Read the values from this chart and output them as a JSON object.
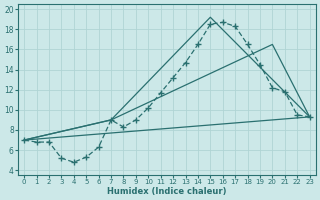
{
  "xlabel": "Humidex (Indice chaleur)",
  "xlim": [
    -0.5,
    23.5
  ],
  "ylim": [
    3.5,
    20.5
  ],
  "yticks": [
    4,
    6,
    8,
    10,
    12,
    14,
    16,
    18,
    20
  ],
  "xticks": [
    0,
    1,
    2,
    3,
    4,
    5,
    6,
    7,
    8,
    9,
    10,
    11,
    12,
    13,
    14,
    15,
    16,
    17,
    18,
    19,
    20,
    21,
    22,
    23
  ],
  "bg_color": "#cce8e8",
  "line_color": "#2a7070",
  "grid_color": "#b0d4d4",
  "line1_x": [
    0,
    1,
    2,
    3,
    4,
    5,
    6,
    7,
    8,
    9,
    10,
    11,
    12,
    13,
    14,
    15,
    16,
    17,
    18,
    19,
    20,
    21,
    22,
    23
  ],
  "line1_y": [
    7.0,
    6.8,
    6.8,
    5.2,
    4.8,
    5.3,
    6.3,
    9.0,
    8.3,
    9.0,
    10.2,
    11.7,
    13.2,
    14.7,
    16.5,
    18.5,
    18.7,
    18.3,
    16.5,
    14.5,
    12.2,
    11.8,
    9.5,
    9.3
  ],
  "line2_x": [
    0,
    7,
    15,
    23
  ],
  "line2_y": [
    7.0,
    9.0,
    19.2,
    9.3
  ],
  "line3_x": [
    0,
    7,
    20,
    23
  ],
  "line3_y": [
    7.0,
    9.0,
    16.5,
    9.3
  ],
  "line4_x": [
    0,
    23
  ],
  "line4_y": [
    7.0,
    9.3
  ]
}
